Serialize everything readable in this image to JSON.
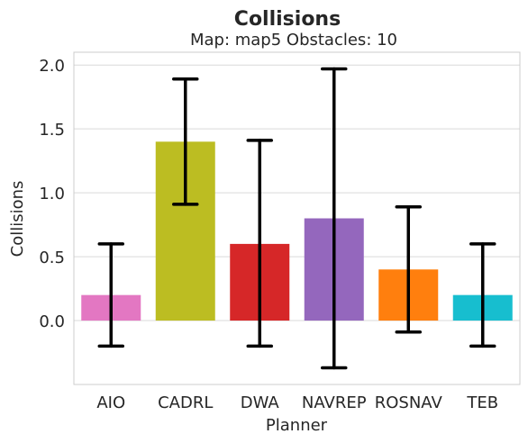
{
  "chart_data": {
    "type": "bar",
    "title": "Collisions",
    "subtitle": "Map: map5 Obstacles: 10",
    "xlabel": "Planner",
    "ylabel": "Collisions",
    "categories": [
      "AIO",
      "CADRL",
      "DWA",
      "NAVREP",
      "ROSNAV",
      "TEB"
    ],
    "values": [
      0.2,
      1.4,
      0.6,
      0.8,
      0.4,
      0.2
    ],
    "error_low": [
      -0.2,
      0.91,
      -0.2,
      -0.37,
      -0.09,
      -0.2
    ],
    "error_high": [
      0.6,
      1.89,
      1.41,
      1.97,
      0.89,
      0.6
    ],
    "colors": [
      "#e377c2",
      "#bcbd22",
      "#d62728",
      "#9467bd",
      "#ff7f0e",
      "#17becf"
    ],
    "ylim": [
      -0.5,
      2.1
    ],
    "yticks": [
      "0.0",
      "0.5",
      "1.0",
      "1.5",
      "2.0"
    ],
    "ytick_values": [
      0.0,
      0.5,
      1.0,
      1.5,
      2.0
    ],
    "grid": true
  }
}
